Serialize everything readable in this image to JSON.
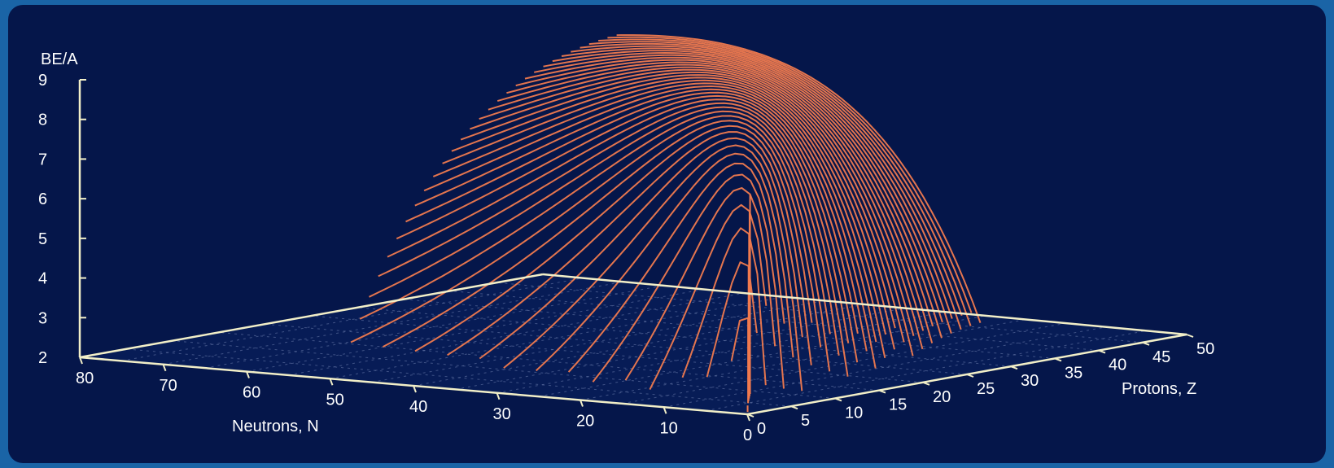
{
  "chart_data": {
    "type": "surface3d",
    "title": "",
    "zlabel": "BE/A",
    "xlabel": "Neutrons, N",
    "ylabel": "Protons, Z",
    "z_ticks": [
      "9",
      "8",
      "7",
      "6",
      "5",
      "4",
      "3",
      "2"
    ],
    "n_ticks": [
      "80",
      "70",
      "60",
      "50",
      "40",
      "30",
      "20",
      "10",
      "0"
    ],
    "z_proton_ticks": [
      "0",
      "5",
      "10",
      "15",
      "20",
      "25",
      "30",
      "35",
      "40",
      "45",
      "50"
    ],
    "zlim": [
      2,
      9
    ],
    "n_range": [
      0,
      80
    ],
    "proton_range": [
      0,
      50
    ],
    "surface_color": "#f07a4e",
    "axis_color": "#f2efc8",
    "grid": true
  }
}
